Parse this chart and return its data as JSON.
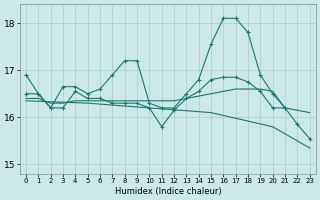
{
  "xlabel": "Humidex (Indice chaleur)",
  "xlim": [
    -0.5,
    23.5
  ],
  "ylim": [
    14.8,
    18.4
  ],
  "yticks": [
    15,
    16,
    17,
    18
  ],
  "xticks": [
    0,
    1,
    2,
    3,
    4,
    5,
    6,
    7,
    8,
    9,
    10,
    11,
    12,
    13,
    14,
    15,
    16,
    17,
    18,
    19,
    20,
    21,
    22,
    23
  ],
  "background_color": "#cce8e8",
  "grid_color": "#aacccc",
  "line_color": "#1a7a6a",
  "series1_x": [
    0,
    1,
    2,
    3,
    4,
    5,
    6,
    7,
    8,
    9,
    10,
    11,
    12,
    13,
    14,
    15,
    16,
    17,
    18,
    19,
    20,
    21
  ],
  "series1_y": [
    16.9,
    16.5,
    16.2,
    16.65,
    16.65,
    16.5,
    16.6,
    16.9,
    17.2,
    17.2,
    16.3,
    16.2,
    16.2,
    16.5,
    16.8,
    17.55,
    18.1,
    18.1,
    17.8,
    16.9,
    16.5,
    16.2
  ],
  "series2_x": [
    0,
    1,
    2,
    3,
    4,
    5,
    6,
    7,
    8,
    9,
    10,
    11,
    12,
    13,
    14,
    15,
    16,
    17,
    18,
    19,
    20,
    21,
    22,
    23
  ],
  "series2_y": [
    16.5,
    16.5,
    16.2,
    16.2,
    16.55,
    16.4,
    16.4,
    16.3,
    16.3,
    16.3,
    16.2,
    15.8,
    16.15,
    16.4,
    16.55,
    16.8,
    16.85,
    16.85,
    16.75,
    16.55,
    16.2,
    16.2,
    15.85,
    15.55
  ],
  "series3_x": [
    0,
    1,
    2,
    3,
    4,
    5,
    6,
    7,
    8,
    9,
    10,
    11,
    12,
    13,
    14,
    15,
    16,
    17,
    18,
    19,
    20,
    21,
    22,
    23
  ],
  "series3_y": [
    16.4,
    16.4,
    16.3,
    16.3,
    16.35,
    16.35,
    16.35,
    16.35,
    16.35,
    16.35,
    16.35,
    16.35,
    16.35,
    16.4,
    16.45,
    16.5,
    16.55,
    16.6,
    16.6,
    16.6,
    16.55,
    16.2,
    16.15,
    16.1
  ],
  "series4_x": [
    0,
    5,
    10,
    15,
    20,
    23
  ],
  "series4_y": [
    16.35,
    16.3,
    16.2,
    16.1,
    15.8,
    15.35
  ]
}
